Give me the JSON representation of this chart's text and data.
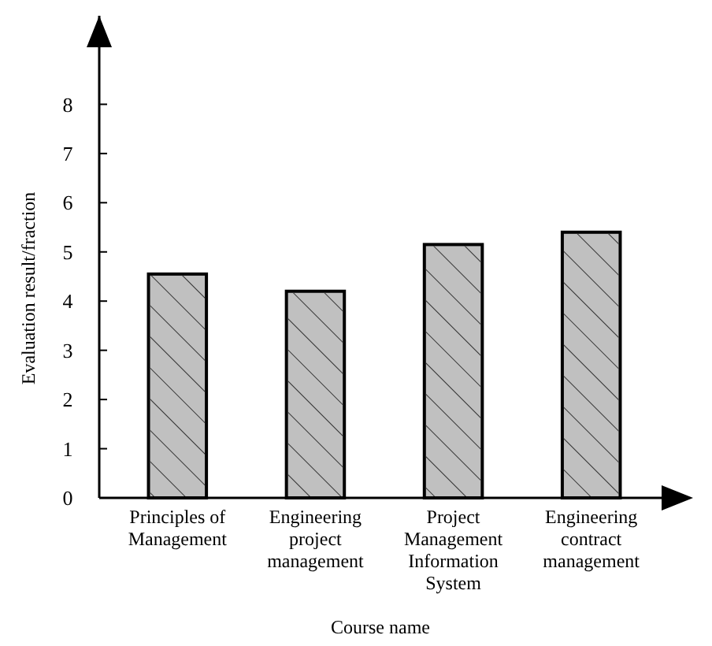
{
  "chart_data": {
    "type": "bar",
    "xlabel": "Course name",
    "ylabel": "Evaluation result/fraction",
    "categories": [
      "Principles of Management",
      "Engineering project management",
      "Project Management Information System",
      "Engineering contract management"
    ],
    "values": [
      4.55,
      4.2,
      5.15,
      5.4
    ],
    "color": "#c0c0c0",
    "ylim": [
      0,
      9.8
    ],
    "yticks": [
      0,
      1,
      2,
      3,
      4,
      5,
      6,
      7,
      8
    ]
  }
}
